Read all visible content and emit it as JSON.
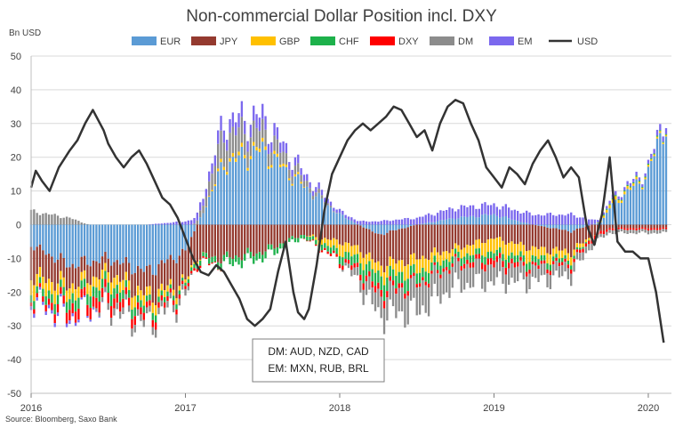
{
  "chart_data": {
    "type": "bar",
    "stacked": true,
    "title": "Non-commercial Dollar Position incl. DXY",
    "ylabel": "Bn USD",
    "ylim": [
      -50,
      50
    ],
    "yticks": [
      50,
      40,
      30,
      20,
      10,
      0,
      -10,
      -20,
      -30,
      -40,
      -50
    ],
    "xlim": [
      2016.0,
      2020.15
    ],
    "xticks": [
      {
        "value": 2016.0,
        "label": "2016"
      },
      {
        "value": 2017.0,
        "label": "2017"
      },
      {
        "value": 2018.0,
        "label": "2018"
      },
      {
        "value": 2019.0,
        "label": "2019"
      },
      {
        "value": 2020.0,
        "label": "2020"
      }
    ],
    "grid": "horizontal",
    "legend_position": "top",
    "legend": [
      "EUR",
      "JPY",
      "GBP",
      "CHF",
      "DXY",
      "DM",
      "EM",
      "USD"
    ],
    "colors": {
      "EUR": "#5b9bd5",
      "JPY": "#943a2f",
      "GBP": "#ffc000",
      "CHF": "#1db14b",
      "DXY": "#ff0000",
      "DM": "#8c8c8c",
      "EM": "#7b68ee",
      "USD": "#333333"
    },
    "bar_anchors": {
      "x": [
        2016.0,
        2016.25,
        2016.5,
        2016.75,
        2017.0,
        2017.25,
        2017.5,
        2017.75,
        2018.0,
        2018.25,
        2018.5,
        2018.75,
        2019.0,
        2019.25,
        2019.5,
        2019.7,
        2019.75,
        2020.0,
        2020.1
      ],
      "EUR": [
        -6,
        -12,
        -10,
        -14,
        -8,
        18,
        22,
        12,
        3,
        -3,
        0,
        2,
        3,
        0,
        -2,
        1,
        5,
        15,
        30
      ],
      "JPY": [
        -9,
        -6,
        -4,
        -7,
        -9,
        -10,
        -8,
        -3,
        -5,
        -9,
        -10,
        -7,
        -4,
        -7,
        -6,
        -2,
        -1,
        -1,
        -1
      ],
      "GBP": [
        -4,
        -3,
        -3,
        -3,
        -1,
        1,
        1,
        0.5,
        -3,
        -3,
        -4,
        -2,
        -4,
        -3,
        -2,
        0.5,
        1,
        0.5,
        0.5
      ],
      "CHF": [
        -2,
        -3,
        -3,
        -2,
        -1,
        -2,
        -2,
        -1,
        -2,
        -4,
        -3,
        -2,
        -2,
        -2,
        -1,
        0.3,
        0.3,
        0.3,
        0.3
      ],
      "DXY": [
        -1,
        -3,
        -3,
        -2,
        -1,
        0,
        0,
        0,
        -1,
        -2,
        -1,
        -1,
        -2,
        -1,
        -1,
        -1,
        -0.5,
        -0.5,
        -0.5
      ],
      "DM": [
        4,
        2,
        -2,
        -2,
        -2,
        8,
        5,
        2,
        0,
        -6,
        -8,
        -6,
        -5,
        -4,
        -3,
        -1,
        -1,
        -1,
        -1
      ],
      "EM": [
        -1,
        -1,
        0,
        0,
        1,
        4,
        4,
        2,
        1,
        1,
        2,
        3,
        3,
        3,
        3,
        0.5,
        1,
        1,
        2
      ]
    },
    "usd_line": {
      "x": [
        2016.0,
        2016.03,
        2016.07,
        2016.12,
        2016.18,
        2016.25,
        2016.3,
        2016.35,
        2016.4,
        2016.47,
        2016.5,
        2016.55,
        2016.6,
        2016.65,
        2016.7,
        2016.75,
        2016.8,
        2016.85,
        2016.9,
        2016.95,
        2017.0,
        2017.05,
        2017.1,
        2017.15,
        2017.2,
        2017.25,
        2017.3,
        2017.35,
        2017.4,
        2017.45,
        2017.5,
        2017.55,
        2017.6,
        2017.65,
        2017.7,
        2017.73,
        2017.77,
        2017.8,
        2017.85,
        2017.9,
        2017.95,
        2018.0,
        2018.05,
        2018.1,
        2018.15,
        2018.2,
        2018.25,
        2018.3,
        2018.35,
        2018.4,
        2018.45,
        2018.5,
        2018.55,
        2018.6,
        2018.65,
        2018.7,
        2018.75,
        2018.8,
        2018.85,
        2018.9,
        2018.95,
        2019.0,
        2019.05,
        2019.1,
        2019.15,
        2019.2,
        2019.25,
        2019.3,
        2019.35,
        2019.4,
        2019.45,
        2019.5,
        2019.55,
        2019.6,
        2019.65,
        2019.7,
        2019.75,
        2019.8,
        2019.85,
        2019.9,
        2019.95,
        2020.0,
        2020.05,
        2020.1
      ],
      "y": [
        11,
        16,
        13,
        10,
        17,
        22,
        25,
        30,
        34,
        28,
        24,
        20,
        17,
        20,
        22,
        18,
        13,
        8,
        6,
        2,
        -4,
        -10,
        -14,
        -15,
        -12,
        -14,
        -18,
        -22,
        -28,
        -30,
        -28,
        -25,
        -14,
        -5,
        -20,
        -26,
        -28,
        -25,
        -12,
        4,
        15,
        20,
        25,
        28,
        30,
        28,
        30,
        32,
        35,
        34,
        30,
        26,
        28,
        22,
        30,
        35,
        37,
        36,
        30,
        25,
        17,
        14,
        11,
        17,
        15,
        12,
        18,
        22,
        25,
        20,
        14,
        17,
        14,
        0,
        -6,
        3,
        20,
        -5,
        -8,
        -8,
        -10,
        -10,
        -20,
        -35
      ]
    },
    "annotation": [
      "DM: AUD, NZD, CAD",
      "EM: MXN, RUB, BRL"
    ],
    "source": "Source: Bloomberg, Saxo Bank"
  }
}
